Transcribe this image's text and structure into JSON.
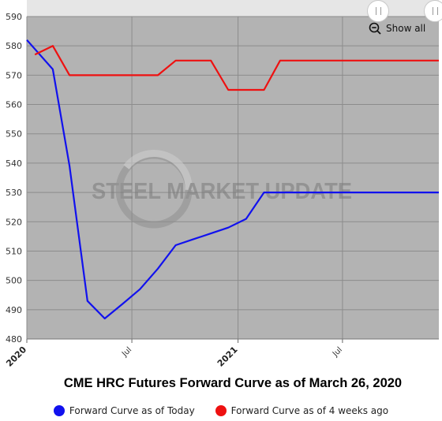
{
  "chart_data": {
    "type": "line",
    "title": "CME HRC Futures Forward Curve as of March 26, 2020",
    "ylim": [
      480,
      590
    ],
    "yticks": [
      480,
      490,
      500,
      510,
      520,
      530,
      540,
      550,
      560,
      570,
      580,
      590
    ],
    "xlim": [
      "2020-01-01",
      "2021-12-15"
    ],
    "xticks": [
      {
        "date": "2020-01-01",
        "label": "2020",
        "major": true
      },
      {
        "date": "2020-07-01",
        "label": "Jul",
        "major": false
      },
      {
        "date": "2021-01-01",
        "label": "2021",
        "major": true
      },
      {
        "date": "2021-07-01",
        "label": "Jul",
        "major": false
      }
    ],
    "grid": true,
    "watermark": "STEEL MARKET UPDATE",
    "series": [
      {
        "name": "Forward Curve as of Today",
        "color": "#1111ee",
        "points": [
          {
            "x": "2020-01-01",
            "y": 582
          },
          {
            "x": "2020-02-15",
            "y": 572
          },
          {
            "x": "2020-03-15",
            "y": 539
          },
          {
            "x": "2020-04-15",
            "y": 493
          },
          {
            "x": "2020-05-15",
            "y": 487
          },
          {
            "x": "2020-06-15",
            "y": 492
          },
          {
            "x": "2020-07-15",
            "y": 497
          },
          {
            "x": "2020-08-15",
            "y": 504
          },
          {
            "x": "2020-09-15",
            "y": 512
          },
          {
            "x": "2020-10-15",
            "y": 514
          },
          {
            "x": "2020-11-15",
            "y": 516
          },
          {
            "x": "2020-12-15",
            "y": 518
          },
          {
            "x": "2021-01-15",
            "y": 521
          },
          {
            "x": "2021-02-15",
            "y": 530
          },
          {
            "x": "2021-03-15",
            "y": 530
          },
          {
            "x": "2021-12-15",
            "y": 530
          }
        ]
      },
      {
        "name": "Forward Curve as of 4 weeks ago",
        "color": "#ee1111",
        "points": [
          {
            "x": "2020-01-15",
            "y": 577
          },
          {
            "x": "2020-02-15",
            "y": 580
          },
          {
            "x": "2020-03-15",
            "y": 570
          },
          {
            "x": "2020-04-15",
            "y": 570
          },
          {
            "x": "2020-05-15",
            "y": 570
          },
          {
            "x": "2020-06-15",
            "y": 570
          },
          {
            "x": "2020-07-15",
            "y": 570
          },
          {
            "x": "2020-08-15",
            "y": 570
          },
          {
            "x": "2020-09-15",
            "y": 575
          },
          {
            "x": "2020-10-15",
            "y": 575
          },
          {
            "x": "2020-11-15",
            "y": 575
          },
          {
            "x": "2020-12-15",
            "y": 565
          },
          {
            "x": "2021-01-15",
            "y": 565
          },
          {
            "x": "2021-02-15",
            "y": 565
          },
          {
            "x": "2021-03-15",
            "y": 575
          },
          {
            "x": "2021-12-15",
            "y": 575
          }
        ]
      }
    ]
  },
  "controls": {
    "show_all_label": "Show all"
  },
  "legend": {
    "items": [
      {
        "label": "Forward Curve as of Today",
        "color": "#1111ee"
      },
      {
        "label": "Forward Curve as of 4 weeks ago",
        "color": "#ee1111"
      }
    ]
  },
  "colors": {
    "plot_background": "#b3b3b3",
    "grid": "#8c8c8c",
    "navigator_background": "#e6e6e6"
  }
}
